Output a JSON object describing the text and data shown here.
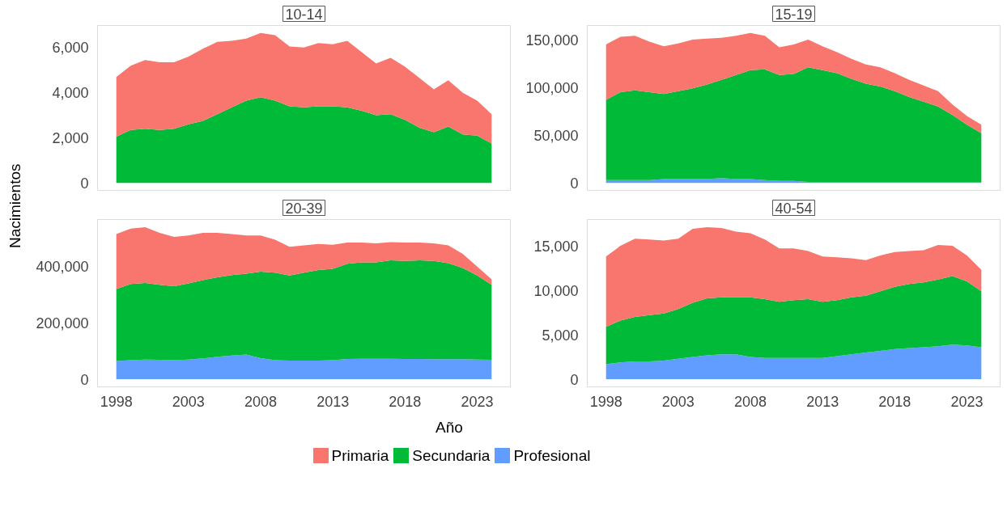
{
  "chart_data": [
    {
      "type": "area",
      "title": "10-14",
      "ylabel": "Nacimientos",
      "stacked": true,
      "tick_labels": "y",
      "grid": false,
      "x": [
        1998,
        1999,
        2000,
        2001,
        2002,
        2003,
        2004,
        2005,
        2006,
        2007,
        2008,
        2009,
        2010,
        2011,
        2012,
        2013,
        2014,
        2015,
        2016,
        2017,
        2018,
        2019,
        2020,
        2021,
        2022,
        2023,
        2024
      ],
      "xlim": [
        1996.7,
        2025.3
      ],
      "xticks": [
        1998,
        2003,
        2008,
        2013,
        2018,
        2023
      ],
      "ylim": [
        -330,
        6980
      ],
      "yticks": [
        0,
        {
          "value": 2000,
          "label": "2,000"
        },
        {
          "value": 4000,
          "label": "4,000"
        },
        {
          "value": 6000,
          "label": "6,000"
        }
      ],
      "series": [
        {
          "color": "#00ba38",
          "values": [
            2050,
            2350,
            2400,
            2350,
            2400,
            2600,
            2750,
            3050,
            3350,
            3650,
            3800,
            3650,
            3400,
            3350,
            3400,
            3400,
            3350,
            3200,
            3000,
            3050,
            2800,
            2450,
            2250,
            2500,
            2150,
            2100,
            1750
          ]
        },
        {
          "color": "#f8766d",
          "values": [
            2650,
            2850,
            3050,
            3000,
            2950,
            3000,
            3200,
            3200,
            2950,
            2750,
            2850,
            2900,
            2650,
            2650,
            2800,
            2750,
            2950,
            2600,
            2300,
            2500,
            2350,
            2200,
            1900,
            2050,
            1850,
            1550,
            1300
          ]
        }
      ]
    },
    {
      "type": "area",
      "title": "15-19",
      "stacked": true,
      "tick_labels": "y",
      "grid": false,
      "x": [
        1998,
        1999,
        2000,
        2001,
        2002,
        2003,
        2004,
        2005,
        2006,
        2007,
        2008,
        2009,
        2010,
        2011,
        2012,
        2013,
        2014,
        2015,
        2016,
        2017,
        2018,
        2019,
        2020,
        2021,
        2022,
        2023,
        2024
      ],
      "xlim": [
        1996.7,
        2025.3
      ],
      "xticks": [
        1998,
        2003,
        2008,
        2013,
        2018,
        2023
      ],
      "ylim": [
        -7850,
        164850
      ],
      "yticks": [
        0,
        {
          "value": 50000,
          "label": "50,000"
        },
        {
          "value": 100000,
          "label": "100,000"
        },
        {
          "value": 150000,
          "label": "150,000"
        }
      ],
      "series": [
        {
          "color": "#619cff",
          "values": [
            3000,
            3000,
            3000,
            3000,
            4000,
            4000,
            4000,
            4000,
            5000,
            4000,
            4000,
            3000,
            2000,
            2000,
            1000,
            1000,
            1000,
            1000,
            1000,
            1000,
            1000,
            1000,
            1000,
            1000,
            1000,
            1000,
            1000
          ]
        },
        {
          "color": "#00ba38",
          "values": [
            84000,
            92000,
            94000,
            92000,
            89000,
            92000,
            95000,
            99000,
            103000,
            109000,
            114000,
            116000,
            111000,
            112000,
            120000,
            117000,
            114000,
            108000,
            103000,
            100000,
            95000,
            89000,
            84000,
            79000,
            70000,
            60000,
            51000
          ]
        },
        {
          "color": "#f8766d",
          "values": [
            58000,
            58000,
            57000,
            53000,
            50000,
            50000,
            51000,
            48000,
            44000,
            41000,
            39000,
            35000,
            29000,
            31000,
            29000,
            25000,
            22000,
            21000,
            20000,
            20000,
            19000,
            18000,
            17000,
            16000,
            11000,
            9000,
            9000
          ]
        }
      ]
    },
    {
      "type": "area",
      "title": "20-39",
      "stacked": true,
      "grid": false,
      "x": [
        1998,
        1999,
        2000,
        2001,
        2002,
        2003,
        2004,
        2005,
        2006,
        2007,
        2008,
        2009,
        2010,
        2011,
        2012,
        2013,
        2014,
        2015,
        2016,
        2017,
        2018,
        2019,
        2020,
        2021,
        2022,
        2023,
        2024
      ],
      "xlim": [
        1996.7,
        2025.3
      ],
      "xticks": [
        1998,
        2003,
        2008,
        2013,
        2018,
        2023
      ],
      "ylim": [
        -27000,
        567000
      ],
      "yticks": [
        0,
        {
          "value": 200000,
          "label": "200,000"
        },
        {
          "value": 400000,
          "label": "400,000"
        }
      ],
      "series": [
        {
          "color": "#619cff",
          "values": [
            65000,
            68000,
            70000,
            69000,
            68000,
            70000,
            74000,
            80000,
            84000,
            88000,
            75000,
            68000,
            66000,
            66000,
            66000,
            68000,
            72000,
            73000,
            73000,
            73000,
            72000,
            72000,
            71000,
            71000,
            71000,
            70000,
            69000
          ]
        },
        {
          "color": "#00ba38",
          "values": [
            255000,
            270000,
            272000,
            266000,
            262000,
            270000,
            278000,
            282000,
            286000,
            287000,
            307000,
            310000,
            302000,
            312000,
            322000,
            324000,
            338000,
            342000,
            342000,
            349000,
            348000,
            350000,
            349000,
            341000,
            324000,
            298000,
            266000
          ]
        },
        {
          "color": "#f8766d",
          "values": [
            195000,
            197000,
            198000,
            185000,
            175000,
            170000,
            168000,
            158000,
            145000,
            135000,
            128000,
            117000,
            102000,
            97000,
            92000,
            85000,
            75000,
            70000,
            67000,
            65000,
            65000,
            63000,
            62000,
            63000,
            50000,
            32000,
            20000
          ]
        }
      ]
    },
    {
      "type": "area",
      "title": "40-54",
      "xlabel": "Año",
      "legend": "bottom",
      "stacked": true,
      "grid": false,
      "x": [
        1998,
        1999,
        2000,
        2001,
        2002,
        2003,
        2004,
        2005,
        2006,
        2007,
        2008,
        2009,
        2010,
        2011,
        2012,
        2013,
        2014,
        2015,
        2016,
        2017,
        2018,
        2019,
        2020,
        2021,
        2022,
        2023,
        2024
      ],
      "xlim": [
        1996.7,
        2025.3
      ],
      "xticks": [
        1998,
        2003,
        2008,
        2013,
        2018,
        2023
      ],
      "ylim": [
        -855,
        17955
      ],
      "yticks": [
        0,
        {
          "value": 5000,
          "label": "5,000"
        },
        {
          "value": 10000,
          "label": "10,000"
        },
        {
          "value": 15000,
          "label": "15,000"
        }
      ],
      "series": [
        {
          "name": "Profesional",
          "color": "#619cff",
          "values": [
            1700,
            1900,
            2000,
            2000,
            2100,
            2300,
            2500,
            2700,
            2800,
            2800,
            2500,
            2400,
            2400,
            2400,
            2400,
            2400,
            2600,
            2800,
            3000,
            3200,
            3400,
            3500,
            3600,
            3700,
            3900,
            3800,
            3600
          ]
        },
        {
          "name": "Secundaria",
          "color": "#00ba38",
          "values": [
            4200,
            4700,
            5000,
            5200,
            5300,
            5600,
            6100,
            6400,
            6400,
            6400,
            6700,
            6600,
            6300,
            6500,
            6600,
            6300,
            6300,
            6400,
            6400,
            6700,
            7000,
            7200,
            7300,
            7500,
            7700,
            7200,
            6300
          ]
        },
        {
          "name": "Primaria",
          "color": "#f8766d",
          "values": [
            7900,
            8400,
            8800,
            8500,
            8200,
            7900,
            8300,
            8000,
            7800,
            7400,
            7200,
            6700,
            6000,
            5800,
            5400,
            5100,
            4800,
            4400,
            4000,
            4000,
            3900,
            3700,
            3600,
            3900,
            3400,
            2900,
            2400
          ]
        }
      ]
    }
  ]
}
